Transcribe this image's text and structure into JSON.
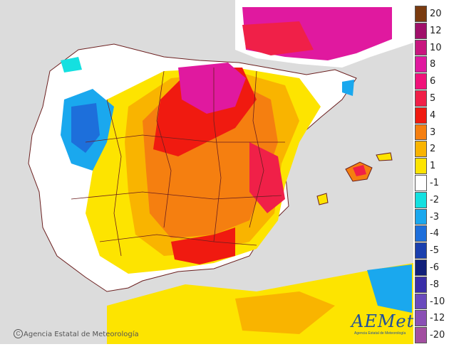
{
  "map": {
    "region": "Iberian Peninsula and Balearic Islands",
    "palette": {
      "sea": "#dcdcdc",
      "land_outside": "#e8e8e8",
      "neutral": "#ffffff",
      "border": "#6b1f1f"
    },
    "credit": "Agencia Estatal de Meteorología",
    "credit_symbol": "C",
    "logo": {
      "name": "AEMet",
      "subtitle": "Agencia Estatal de Meteorología"
    }
  },
  "legend": {
    "items": [
      {
        "label": "20",
        "color": "#7a3b0f"
      },
      {
        "label": "12",
        "color": "#a0106a"
      },
      {
        "label": "10",
        "color": "#c8167f"
      },
      {
        "label": "8",
        "color": "#e0199f"
      },
      {
        "label": "6",
        "color": "#f0127a"
      },
      {
        "label": "5",
        "color": "#f02048"
      },
      {
        "label": "4",
        "color": "#f01a10"
      },
      {
        "label": "3",
        "color": "#f57f10"
      },
      {
        "label": "2",
        "color": "#f9b400"
      },
      {
        "label": "1",
        "color": "#fde400"
      },
      {
        "label": "-1",
        "color": "#ffffff"
      },
      {
        "label": "-2",
        "color": "#14e0e0"
      },
      {
        "label": "-3",
        "color": "#1aa8ee"
      },
      {
        "label": "-4",
        "color": "#1d6fdb"
      },
      {
        "label": "-5",
        "color": "#1a3fae"
      },
      {
        "label": "-6",
        "color": "#12207a"
      },
      {
        "label": "-8",
        "color": "#3a2ea8"
      },
      {
        "label": "-10",
        "color": "#6a4bbd"
      },
      {
        "label": "-12",
        "color": "#8a50b5"
      },
      {
        "label": "-20",
        "color": "#a24ea0"
      }
    ]
  }
}
